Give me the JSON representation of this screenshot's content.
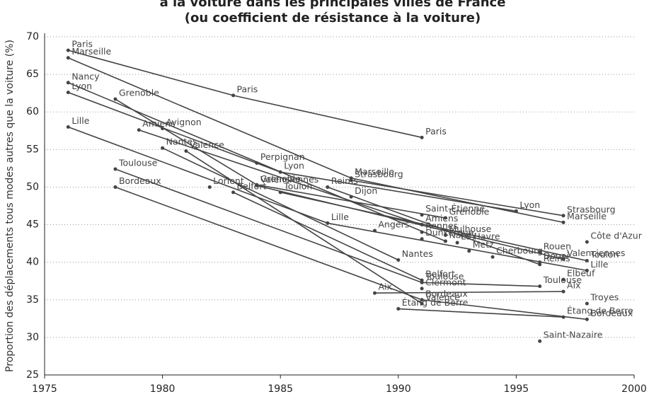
{
  "chart_data": {
    "type": "line",
    "title": "à la voiture dans les principales villes de France",
    "subtitle": "(ou coefficient de résistance à la voiture)",
    "ylabel": "Proportion des déplacements tous modes autres que la voiture (%)",
    "xlim": [
      1975,
      2000
    ],
    "ylim": [
      25,
      70
    ],
    "xticks": [
      1975,
      1980,
      1985,
      1990,
      1995,
      2000
    ],
    "yticks": [
      25,
      30,
      35,
      40,
      45,
      50,
      55,
      60,
      65,
      70
    ],
    "grid": true,
    "color": "#444444",
    "series": [
      {
        "name": "Paris",
        "x": [
          1976,
          1983,
          1991
        ],
        "values": [
          68.2,
          62.2,
          56.6
        ]
      },
      {
        "name": "Marseille",
        "x": [
          1976,
          1988,
          1997
        ],
        "values": [
          67.2,
          51.2,
          45.3
        ]
      },
      {
        "name": "Nancy",
        "x": [
          1976,
          1992
        ],
        "values": [
          63.9,
          42.8
        ]
      },
      {
        "name": "Lyon",
        "x": [
          1976,
          1985,
          1995
        ],
        "values": [
          62.6,
          52.0,
          46.8
        ]
      },
      {
        "name": "Grenoble",
        "x": [
          1978,
          1984,
          1992
        ],
        "values": [
          61.7,
          50.3,
          45.9
        ]
      },
      {
        "name": "Avignon",
        "x": [
          1980
        ],
        "values": [
          57.8
        ]
      },
      {
        "name": "Amiens",
        "x": [
          1979,
          1991
        ],
        "values": [
          57.6,
          45.0
        ]
      },
      {
        "name": "Lille",
        "x": [
          1976,
          1987,
          1998
        ],
        "values": [
          58.0,
          45.2,
          38.9
        ]
      },
      {
        "name": "Nantes",
        "x": [
          1980,
          1990
        ],
        "values": [
          55.2,
          40.3
        ]
      },
      {
        "name": "Valence",
        "x": [
          1981,
          1991
        ],
        "values": [
          54.8,
          34.5
        ]
      },
      {
        "name": "Perpignan",
        "x": [
          1984
        ],
        "values": [
          53.2
        ]
      },
      {
        "name": "Toulouse",
        "x": [
          1978,
          1991,
          1996
        ],
        "values": [
          52.4,
          37.3,
          36.8
        ]
      },
      {
        "name": "Bordeaux",
        "x": [
          1978,
          1991,
          1998
        ],
        "values": [
          50.0,
          35.0,
          32.4
        ]
      },
      {
        "name": "Valenciennes",
        "x": [
          1984,
          1997
        ],
        "values": [
          50.2,
          40.4
        ]
      },
      {
        "name": "Strasbourg",
        "x": [
          1988,
          1997
        ],
        "values": [
          50.9,
          46.2
        ]
      },
      {
        "name": "Reims",
        "x": [
          1987,
          1996
        ],
        "values": [
          50.0,
          39.7
        ]
      },
      {
        "name": "Dijon",
        "x": [
          1988
        ],
        "values": [
          48.7
        ]
      },
      {
        "name": "Toulon",
        "x": [
          1985,
          1998
        ],
        "values": [
          49.3,
          40.2
        ]
      },
      {
        "name": "Lorient",
        "x": [
          1982
        ],
        "values": [
          50.0
        ]
      },
      {
        "name": "Belfort",
        "x": [
          1983,
          1991
        ],
        "values": [
          49.3,
          37.6
        ]
      },
      {
        "name": "Saint-Étienne",
        "x": [
          1991
        ],
        "values": [
          46.3
        ]
      },
      {
        "name": "Angers",
        "x": [
          1989
        ],
        "values": [
          44.2
        ]
      },
      {
        "name": "Rennes",
        "x": [
          1991
        ],
        "values": [
          44.0
        ]
      },
      {
        "name": "Mulhouse",
        "x": [
          1992
        ],
        "values": [
          43.6
        ]
      },
      {
        "name": "Dunkerque",
        "x": [
          1991
        ],
        "values": [
          43.1
        ]
      },
      {
        "name": "Le Havre",
        "x": [
          1992.5
        ],
        "values": [
          42.6
        ]
      },
      {
        "name": "Metz",
        "x": [
          1993
        ],
        "values": [
          41.5
        ]
      },
      {
        "name": "Cherbourg",
        "x": [
          1994
        ],
        "values": [
          40.7
        ]
      },
      {
        "name": "Douai",
        "x": [
          1996
        ],
        "values": [
          40.0
        ]
      },
      {
        "name": "Rouen",
        "x": [
          1996
        ],
        "values": [
          41.3
        ]
      },
      {
        "name": "Côte d'Azur",
        "x": [
          1998
        ],
        "values": [
          42.7
        ]
      },
      {
        "name": "Elbeuf",
        "x": [
          1997
        ],
        "values": [
          37.7
        ]
      },
      {
        "name": "Clermont",
        "x": [
          1991
        ],
        "values": [
          36.5
        ]
      },
      {
        "name": "Aix",
        "x": [
          1989,
          1997
        ],
        "values": [
          35.9,
          36.1
        ]
      },
      {
        "name": "Troyes",
        "x": [
          1998
        ],
        "values": [
          34.5
        ]
      },
      {
        "name": "Étang de Berre",
        "x": [
          1990,
          1997
        ],
        "values": [
          33.8,
          32.7
        ]
      },
      {
        "name": "Saint-Nazaire",
        "x": [
          1996
        ],
        "values": [
          29.5
        ]
      }
    ]
  }
}
